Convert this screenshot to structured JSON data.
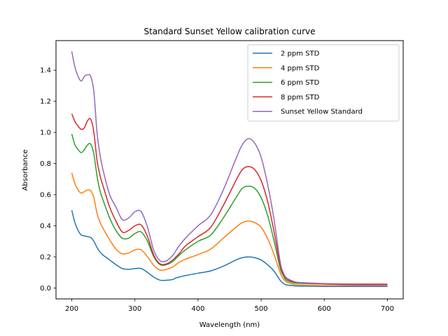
{
  "chart_data": {
    "type": "line",
    "title": "Standard Sunset Yellow calibration curve",
    "xlabel": "Wavelength (nm)",
    "ylabel": "Absorbance",
    "xlim": [
      175,
      725
    ],
    "ylim": [
      -0.07,
      1.59
    ],
    "xticks": [
      200,
      300,
      400,
      500,
      600,
      700
    ],
    "yticks": [
      0.0,
      0.2,
      0.4,
      0.6,
      0.8,
      1.0,
      1.2,
      1.4
    ],
    "ytick_labels": [
      "0.0",
      "0.2",
      "0.4",
      "0.6",
      "0.8",
      "1.0",
      "1.2",
      "1.4"
    ],
    "grid": false,
    "legend_position": "top-right",
    "x": [
      200,
      205,
      210,
      215,
      220,
      225,
      230,
      235,
      240,
      245,
      250,
      260,
      270,
      280,
      290,
      300,
      310,
      320,
      330,
      340,
      350,
      360,
      365,
      370,
      380,
      400,
      420,
      440,
      460,
      470,
      480,
      490,
      500,
      510,
      520,
      530,
      535,
      540,
      550,
      560,
      600,
      650,
      700
    ],
    "series": [
      {
        "name": "2 ppm STD",
        "color": "#1f77b4",
        "values": [
          0.5,
          0.42,
          0.37,
          0.34,
          0.335,
          0.33,
          0.325,
          0.3,
          0.26,
          0.23,
          0.21,
          0.18,
          0.15,
          0.125,
          0.12,
          0.125,
          0.125,
          0.1,
          0.07,
          0.05,
          0.05,
          0.055,
          0.065,
          0.07,
          0.08,
          0.095,
          0.11,
          0.14,
          0.18,
          0.195,
          0.2,
          0.195,
          0.18,
          0.15,
          0.11,
          0.05,
          0.03,
          0.02,
          0.015,
          0.012,
          0.01,
          0.01,
          0.01
        ]
      },
      {
        "name": "4 ppm STD",
        "color": "#ff7f0e",
        "values": [
          0.74,
          0.67,
          0.63,
          0.61,
          0.62,
          0.63,
          0.625,
          0.58,
          0.48,
          0.42,
          0.38,
          0.31,
          0.25,
          0.22,
          0.225,
          0.245,
          0.245,
          0.2,
          0.145,
          0.115,
          0.12,
          0.135,
          0.15,
          0.165,
          0.185,
          0.215,
          0.25,
          0.32,
          0.39,
          0.42,
          0.43,
          0.42,
          0.39,
          0.32,
          0.22,
          0.1,
          0.06,
          0.04,
          0.025,
          0.02,
          0.015,
          0.015,
          0.015
        ]
      },
      {
        "name": "6 ppm STD",
        "color": "#2ca02c",
        "values": [
          0.99,
          0.92,
          0.89,
          0.87,
          0.89,
          0.92,
          0.925,
          0.86,
          0.72,
          0.62,
          0.56,
          0.45,
          0.37,
          0.32,
          0.32,
          0.35,
          0.36,
          0.3,
          0.2,
          0.15,
          0.15,
          0.17,
          0.19,
          0.21,
          0.245,
          0.3,
          0.34,
          0.45,
          0.58,
          0.64,
          0.655,
          0.64,
          0.58,
          0.47,
          0.31,
          0.13,
          0.08,
          0.05,
          0.035,
          0.03,
          0.025,
          0.022,
          0.022
        ]
      },
      {
        "name": "8 ppm STD",
        "color": "#d62728",
        "values": [
          1.12,
          1.07,
          1.04,
          1.02,
          1.03,
          1.075,
          1.085,
          1.0,
          0.82,
          0.72,
          0.65,
          0.52,
          0.43,
          0.36,
          0.37,
          0.4,
          0.405,
          0.33,
          0.21,
          0.155,
          0.155,
          0.18,
          0.2,
          0.22,
          0.27,
          0.33,
          0.39,
          0.53,
          0.69,
          0.76,
          0.78,
          0.76,
          0.69,
          0.56,
          0.37,
          0.15,
          0.09,
          0.06,
          0.04,
          0.035,
          0.028,
          0.025,
          0.025
        ]
      },
      {
        "name": "Sunset Yellow Standard",
        "color": "#9467bd",
        "values": [
          1.52,
          1.42,
          1.36,
          1.33,
          1.36,
          1.37,
          1.36,
          1.26,
          1.0,
          0.85,
          0.75,
          0.6,
          0.52,
          0.44,
          0.45,
          0.49,
          0.49,
          0.39,
          0.24,
          0.175,
          0.175,
          0.21,
          0.24,
          0.27,
          0.32,
          0.4,
          0.47,
          0.63,
          0.83,
          0.92,
          0.96,
          0.93,
          0.84,
          0.67,
          0.45,
          0.17,
          0.1,
          0.065,
          0.045,
          0.035,
          0.025,
          0.02,
          0.02
        ]
      }
    ]
  }
}
